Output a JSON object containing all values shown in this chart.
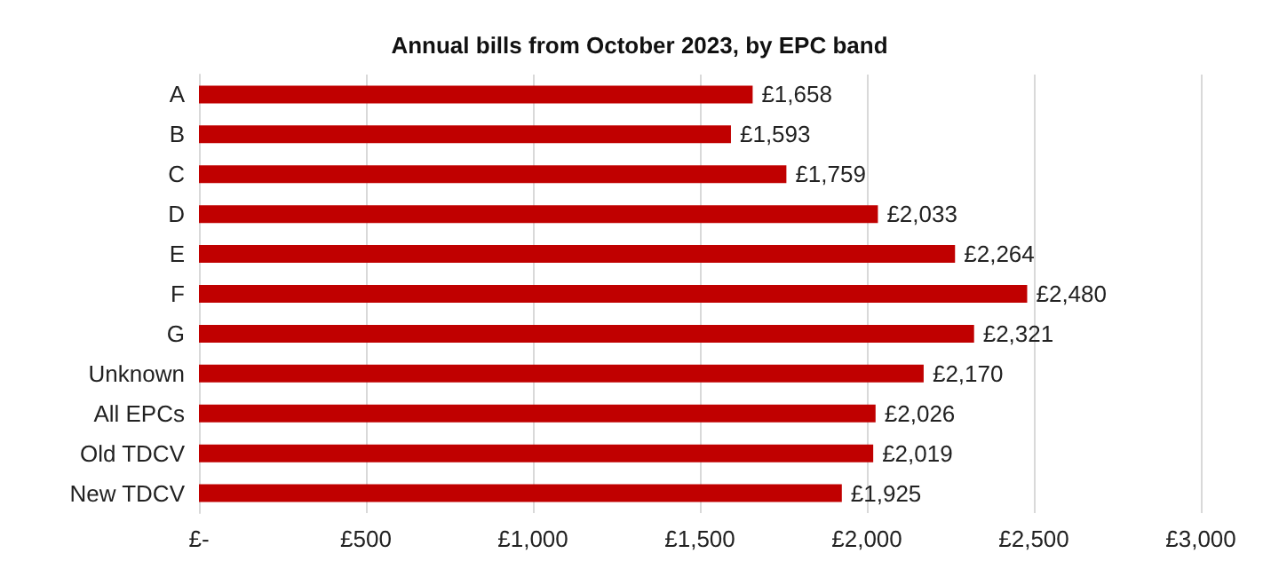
{
  "chart_data": {
    "type": "bar",
    "orientation": "horizontal",
    "title": "Annual bills from October 2023, by EPC band",
    "categories": [
      "A",
      "B",
      "C",
      "D",
      "E",
      "F",
      "G",
      "Unknown",
      "All EPCs",
      "Old TDCV",
      "New TDCV"
    ],
    "values": [
      1658,
      1593,
      1759,
      2033,
      2264,
      2480,
      2321,
      2170,
      2026,
      2019,
      1925
    ],
    "value_labels": [
      "£1,658",
      "£1,593",
      "£1,759",
      "£2,033",
      "£2,264",
      "£2,480",
      "£2,321",
      "£2,170",
      "£2,026",
      "£2,019",
      "£1,925"
    ],
    "color": "#c00000",
    "xlim": [
      0,
      3000
    ],
    "xticks": [
      {
        "value": 0,
        "label": "£-"
      },
      {
        "value": 500,
        "label": "£500"
      },
      {
        "value": 1000,
        "label": "£1,000"
      },
      {
        "value": 1500,
        "label": "£1,500"
      },
      {
        "value": 2000,
        "label": "£2,000"
      },
      {
        "value": 2500,
        "label": "£2,500"
      },
      {
        "value": 3000,
        "label": "£3,000"
      }
    ],
    "grid": "x"
  }
}
